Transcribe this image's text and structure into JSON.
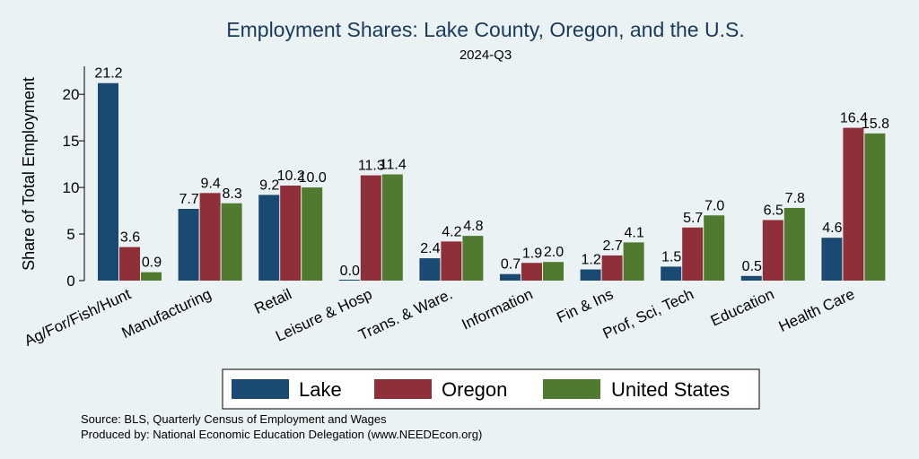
{
  "chart_data": {
    "type": "bar",
    "title": "Employment Shares: Lake County, Oregon, and the U.S.",
    "subtitle": "2024-Q3",
    "xlabel": "",
    "ylabel": "Share of Total Employment",
    "ylim": [
      0,
      23
    ],
    "yticks": [
      0,
      5,
      10,
      15,
      20
    ],
    "grid": false,
    "legend_position": "bottom",
    "categories": [
      "Ag/For/Fish/Hunt",
      "Manufacturing",
      "Retail",
      "Leisure & Hosp",
      "Trans. & Ware.",
      "Information",
      "Fin & Ins",
      "Prof, Sci, Tech",
      "Education",
      "Health Care"
    ],
    "series": [
      {
        "name": "Lake",
        "color": "#1a4a72",
        "values": [
          21.2,
          7.7,
          9.2,
          0.0,
          2.4,
          0.7,
          1.2,
          1.5,
          0.5,
          4.6
        ],
        "labels": [
          "21.2",
          "7.7",
          "9.2",
          "0.0",
          "2.4",
          "0.7",
          "1.2",
          "1.5",
          "0.5",
          "4.6"
        ]
      },
      {
        "name": "Oregon",
        "color": "#8f2f3a",
        "values": [
          3.6,
          9.4,
          10.2,
          11.3,
          4.2,
          1.9,
          2.7,
          5.7,
          6.5,
          16.4
        ],
        "labels": [
          "3.6",
          "9.4",
          "10.2",
          "11.3",
          "4.2",
          "1.9",
          "2.7",
          "5.7",
          "6.5",
          "16.4"
        ]
      },
      {
        "name": "United States",
        "color": "#4f7a30",
        "values": [
          0.9,
          8.3,
          10.0,
          11.4,
          4.8,
          2.0,
          4.1,
          7.0,
          7.8,
          15.8
        ],
        "labels": [
          "0.9",
          "8.3",
          "10.0",
          "11.4",
          "4.8",
          "2.0",
          "4.1",
          "7.0",
          "7.8",
          "15.8"
        ]
      }
    ]
  },
  "notes": {
    "source": "Source: BLS, Quarterly Census of Employment and Wages",
    "produced_by": "Produced by: National Economic Education Delegation (www.NEEDEcon.org)"
  }
}
